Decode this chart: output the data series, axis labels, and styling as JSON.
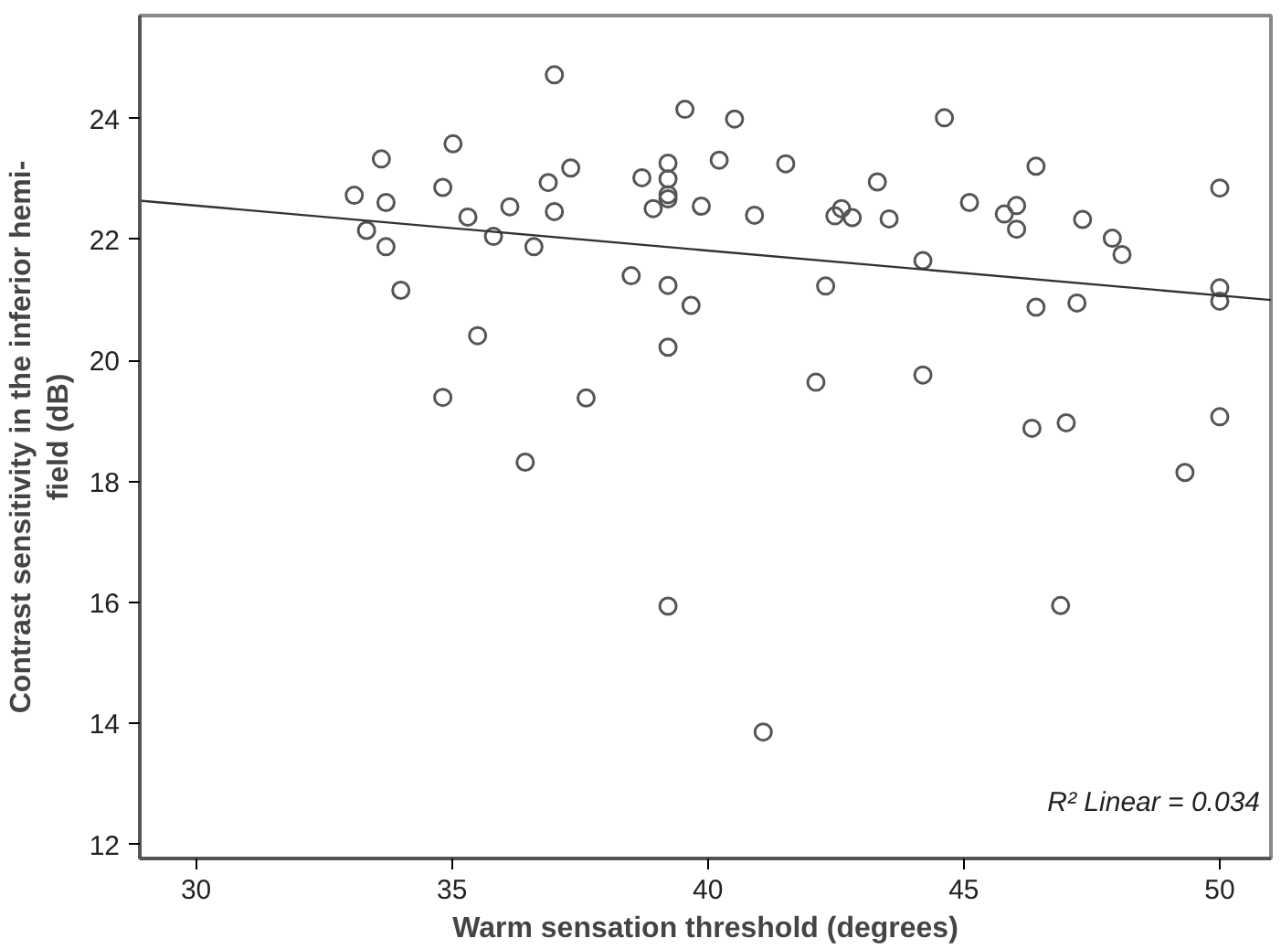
{
  "chart_data": {
    "type": "scatter",
    "xlabel": "Warm sensation threshold (degrees)",
    "ylabel": "Contrast sensitivity in the inferior hemi-\nfield (dB)",
    "xlim": [
      28.9,
      51.0
    ],
    "ylim": [
      11.77,
      25.7
    ],
    "xticks": [
      30,
      35,
      40,
      45,
      50
    ],
    "yticks": [
      12,
      14,
      16,
      18,
      20,
      22,
      24
    ],
    "grid": false,
    "annotations": [
      "R² Linear = 0.034"
    ],
    "series": [
      {
        "marker": "circle",
        "color": "#555555",
        "x": [
          33.09,
          33.62,
          33.71,
          33.33,
          33.71,
          34.0,
          34.82,
          35.02,
          35.31,
          35.5,
          34.82,
          35.81,
          36.13,
          36.6,
          36.88,
          37.0,
          37.0,
          37.32,
          37.62,
          38.5,
          38.71,
          39.22,
          39.22,
          39.22,
          39.22,
          38.93,
          39.22,
          39.22,
          39.67,
          39.55,
          39.87,
          36.43,
          39.22,
          40.52,
          40.22,
          41.52,
          40.91,
          42.3,
          42.11,
          42.61,
          42.48,
          42.82,
          43.31,
          43.54,
          44.2,
          44.2,
          44.62,
          45.11,
          45.79,
          46.03,
          46.03,
          46.41,
          46.41,
          46.33,
          47.0,
          47.21,
          47.32,
          47.9,
          48.09,
          50.0,
          50.0,
          50.0,
          50.0,
          49.32,
          46.89,
          41.08
        ],
        "values": [
          22.73,
          23.33,
          22.61,
          22.15,
          21.88,
          21.16,
          22.86,
          23.58,
          22.37,
          20.41,
          19.39,
          22.05,
          22.54,
          21.88,
          22.94,
          22.46,
          24.72,
          23.18,
          19.38,
          21.4,
          23.02,
          23.26,
          23.0,
          22.74,
          22.67,
          22.51,
          21.24,
          20.22,
          20.91,
          24.15,
          22.55,
          18.32,
          15.94,
          23.99,
          23.31,
          23.25,
          22.4,
          21.23,
          19.64,
          22.51,
          22.39,
          22.36,
          22.95,
          22.34,
          21.65,
          19.76,
          24.01,
          22.61,
          22.42,
          22.56,
          22.17,
          23.21,
          20.88,
          18.88,
          18.97,
          20.95,
          22.33,
          22.02,
          21.75,
          22.85,
          21.2,
          20.98,
          19.07,
          18.15,
          15.95,
          13.86
        ]
      },
      {
        "type": "line",
        "marker": "none",
        "color": "#333333",
        "x": [
          28.9,
          51.0
        ],
        "values": [
          22.64,
          21.0
        ]
      }
    ]
  }
}
